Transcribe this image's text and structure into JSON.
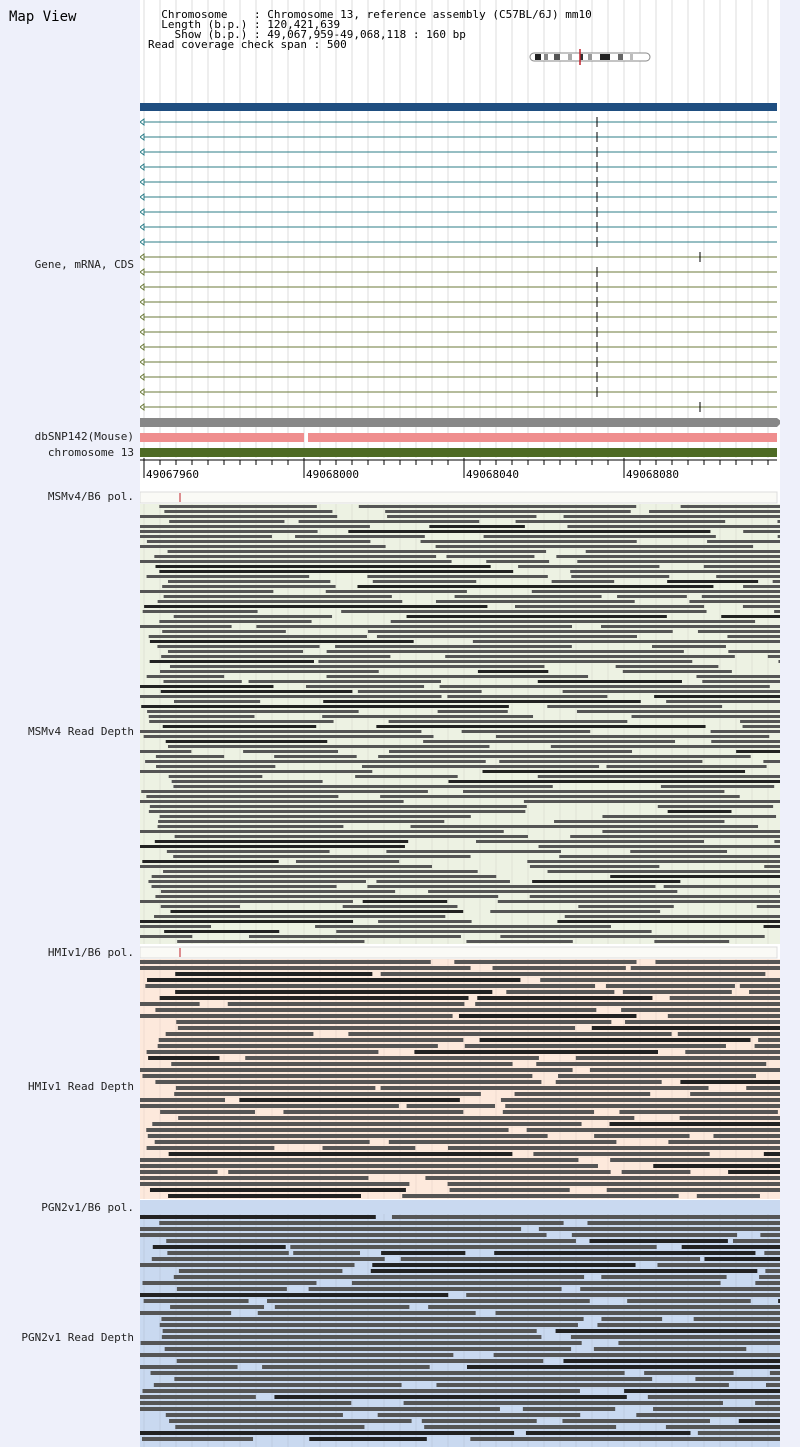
{
  "title": "Map View",
  "info": {
    "chromosome_label": "Chromosome",
    "chromosome_value": "Chromosome 13, reference assembly (C57BL/6J) mm10",
    "length_label": "Length (b.p.)",
    "length_value": "120,421,639",
    "show_label": "Show (b.p.)",
    "show_value": "49,067,959-49,068,118 : 160 bp",
    "coverage_label": "Read coverage check span",
    "coverage_value": "500"
  },
  "tracks": {
    "gene": "Gene, mRNA, CDS",
    "dbsnp": "dbSNP142(Mouse)",
    "chromosome": "chromosome 13",
    "msm_pol": "MSMv4/B6 pol.",
    "msm_depth": "MSMv4 Read Depth",
    "hmi_pol": "HMIv1/B6 pol.",
    "hmi_depth": "HMIv1 Read Depth",
    "pgn_pol": "PGN2v1/B6 pol.",
    "pgn_depth": "PGN2v1 Read Depth"
  },
  "axis_ticks": [
    "49067960",
    "49068000",
    "49068040",
    "49068080"
  ],
  "colors": {
    "gene_bar": "#1f4e80",
    "teal_lines": "#2c7c87",
    "olive_lines": "#6b7a3a",
    "grey_track": "#888888",
    "dbsnp_track": "#ef8e8e",
    "chromosome_track": "#4e6b24",
    "msm_bg": "#edf2e3",
    "hmi_bg": "#fde9dc",
    "pgn_bg": "#c9d9f0",
    "read": "#555555",
    "marker": "#c0202a"
  }
}
